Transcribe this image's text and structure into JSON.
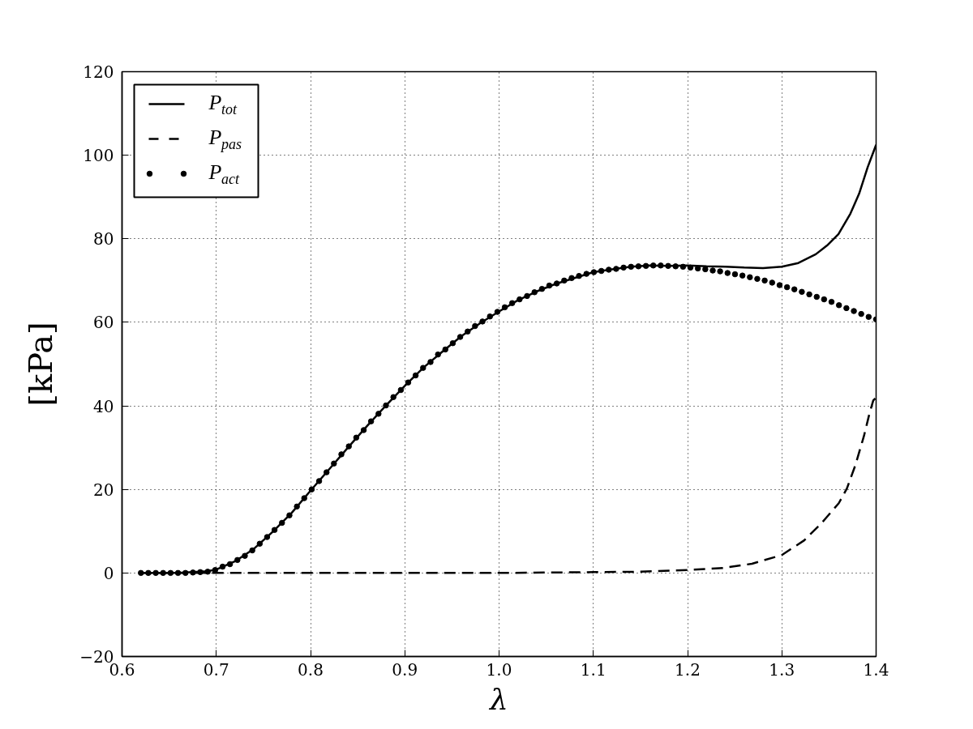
{
  "chart_data": {
    "type": "line",
    "xlabel": "λ",
    "ylabel": "[kPa]",
    "xlim": [
      0.6,
      1.4
    ],
    "ylim": [
      -20,
      120
    ],
    "xticks": [
      0.6,
      0.7,
      0.8,
      0.9,
      {
        "value": 1.0,
        "label": "1.0"
      },
      1.1,
      1.2,
      1.3,
      1.4
    ],
    "yticks": [
      {
        "value": -20,
        "label": "−20"
      },
      0,
      20,
      40,
      60,
      80,
      100,
      120
    ],
    "grid": true,
    "legend": "top left",
    "series": [
      {
        "name": "P$_{tot}$",
        "color": "#000000",
        "line_style": "solid",
        "x": [
          0.62,
          0.66,
          0.69,
          0.7,
          0.72,
          0.74,
          0.76,
          0.78,
          0.8,
          0.82,
          0.84,
          0.86,
          0.88,
          0.9,
          0.92,
          0.94,
          0.96,
          0.98,
          1.0,
          1.02,
          1.04,
          1.06,
          1.08,
          1.1,
          1.12,
          1.14,
          1.16,
          1.18,
          1.2,
          1.22,
          1.24,
          1.26,
          1.28,
          1.3,
          1.3175,
          1.336,
          1.348,
          1.36,
          1.3727,
          1.382,
          1.391,
          1.3975,
          1.4
        ],
        "values": [
          0,
          0,
          0.4,
          0.8,
          2.8,
          5.8,
          9.9,
          14.4,
          19.7,
          24.9,
          30.1,
          35.2,
          40.1,
          44.8,
          49.2,
          53.0,
          56.7,
          59.8,
          62.6,
          65.3,
          67.4,
          69.2,
          70.6,
          72.0,
          72.7,
          73.3,
          73.6,
          73.5,
          73.6,
          73.4,
          73.3,
          73.1,
          73.0,
          73.3,
          74.2,
          76.3,
          78.4,
          81.1,
          86.0,
          90.8,
          97.1,
          101.0,
          102.5
        ]
      },
      {
        "name": "P$_{pas}$",
        "color": "#000000",
        "line_style": "dashed",
        "x": [
          0.62,
          0.7,
          0.8,
          0.9,
          1.0,
          1.1,
          1.15,
          1.2,
          1.2375,
          1.2683,
          1.3,
          1.3237,
          1.342,
          1.3604,
          1.369,
          1.378,
          1.387,
          1.393,
          1.397,
          1.4
        ],
        "values": [
          0,
          0,
          0,
          0,
          0,
          0.2,
          0.3,
          0.7,
          1.2,
          2.2,
          4.3,
          7.8,
          11.9,
          16.7,
          20.2,
          25.8,
          32.7,
          38.2,
          41.3,
          42.0
        ]
      },
      {
        "name": "P$_{act}$",
        "type": "scatter",
        "marker": "circle",
        "color": "#000000",
        "x": [
          0.62,
          0.6279,
          0.6358,
          0.6436,
          0.6515,
          0.6594,
          0.6673,
          0.6752,
          0.683,
          0.6909,
          0.6988,
          0.7067,
          0.7145,
          0.7224,
          0.7303,
          0.7382,
          0.7461,
          0.7539,
          0.7618,
          0.7697,
          0.7776,
          0.7855,
          0.7933,
          0.8012,
          0.8091,
          0.817,
          0.8248,
          0.8327,
          0.8406,
          0.8485,
          0.8564,
          0.8642,
          0.8721,
          0.88,
          0.8879,
          0.8958,
          0.9036,
          0.9115,
          0.9194,
          0.9273,
          0.9352,
          0.943,
          0.9509,
          0.9588,
          0.9667,
          0.9745,
          0.9824,
          0.9903,
          0.9982,
          1.0061,
          1.0139,
          1.0218,
          1.0297,
          1.0376,
          1.0455,
          1.0533,
          1.0612,
          1.0691,
          1.077,
          1.0848,
          1.0927,
          1.1006,
          1.1085,
          1.1164,
          1.1242,
          1.1321,
          1.14,
          1.1479,
          1.1558,
          1.1636,
          1.1715,
          1.1794,
          1.1873,
          1.1952,
          1.203,
          1.2109,
          1.2188,
          1.2267,
          1.2345,
          1.2424,
          1.2503,
          1.2582,
          1.2661,
          1.2739,
          1.2818,
          1.2897,
          1.2976,
          1.3055,
          1.3133,
          1.3212,
          1.3291,
          1.337,
          1.3448,
          1.3527,
          1.3606,
          1.3685,
          1.3764,
          1.3842,
          1.3921,
          1.4
        ],
        "values": [
          0,
          0,
          0,
          0,
          0,
          0,
          0,
          0.1,
          0.2,
          0.3,
          0.7,
          1.5,
          2.1,
          3.1,
          4.1,
          5.4,
          7.0,
          8.6,
          10.3,
          12.0,
          13.8,
          15.9,
          17.9,
          20.0,
          22.0,
          24.1,
          26.2,
          28.4,
          30.3,
          32.4,
          34.2,
          36.3,
          38.1,
          40.1,
          42.1,
          43.8,
          45.6,
          47.3,
          49.1,
          50.5,
          52.3,
          53.5,
          55.0,
          56.5,
          57.8,
          59.1,
          60.2,
          61.4,
          62.5,
          63.6,
          64.6,
          65.5,
          66.3,
          67.2,
          68.0,
          68.8,
          69.3,
          70.0,
          70.6,
          71.1,
          71.6,
          72.0,
          72.3,
          72.6,
          72.8,
          73.1,
          73.3,
          73.4,
          73.5,
          73.6,
          73.6,
          73.5,
          73.4,
          73.3,
          73.1,
          72.9,
          72.7,
          72.4,
          72.2,
          71.8,
          71.5,
          71.2,
          70.8,
          70.4,
          70.0,
          69.5,
          68.9,
          68.4,
          67.9,
          67.3,
          66.7,
          66.1,
          65.5,
          64.9,
          64.1,
          63.4,
          62.7,
          62.0,
          61.3,
          60.7
        ]
      }
    ]
  }
}
